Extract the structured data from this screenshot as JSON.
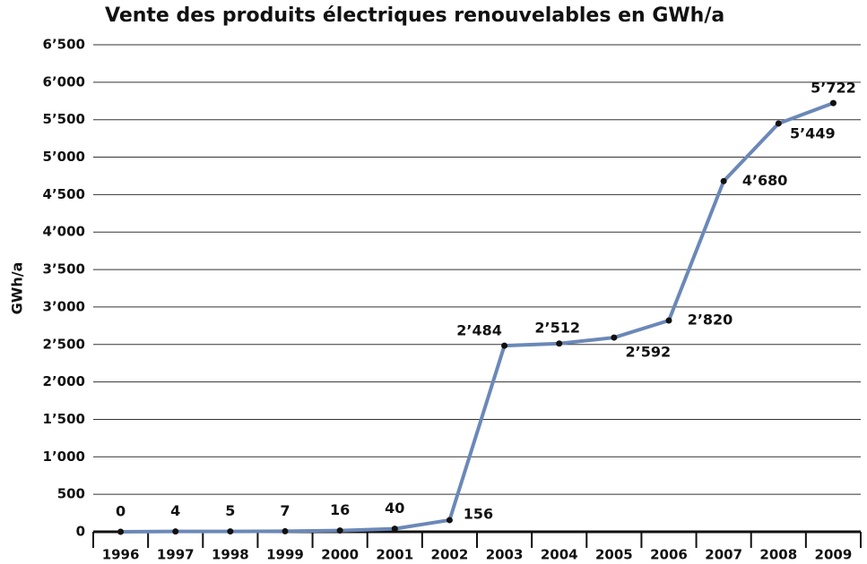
{
  "chart_data": {
    "type": "line",
    "title": "Vente des produits électriques renouvelables en GWh/a",
    "y_label": "GWh/a",
    "categories": [
      "1996",
      "1997",
      "1998",
      "1999",
      "2000",
      "2001",
      "2002",
      "2003",
      "2004",
      "2005",
      "2006",
      "2007",
      "2008",
      "2009"
    ],
    "series": [
      {
        "name": "Vente",
        "color": "#6b88b8",
        "values": [
          0,
          4,
          5,
          7,
          16,
          40,
          156,
          2484,
          2512,
          2592,
          2820,
          4680,
          5449,
          5722
        ],
        "value_labels": [
          "0",
          "4",
          "5",
          "7",
          "16",
          "40",
          "156",
          "2’484",
          "2’512",
          "2’592",
          "2’820",
          "4’680",
          "5’449",
          "5’722"
        ]
      }
    ],
    "ylim": [
      0,
      6500
    ],
    "yticks": [
      0,
      500,
      {
        "value": 1000,
        "label": "1’000"
      },
      {
        "value": 1500,
        "label": "1’500"
      },
      {
        "value": 2000,
        "label": "2’000"
      },
      {
        "value": 2500,
        "label": "2’500"
      },
      {
        "value": 3000,
        "label": "3’000"
      },
      {
        "value": 3500,
        "label": "3’500"
      },
      {
        "value": 4000,
        "label": "4’000"
      },
      {
        "value": 4500,
        "label": "4’500"
      },
      {
        "value": 5000,
        "label": "5’000"
      },
      {
        "value": 5500,
        "label": "5’500"
      },
      {
        "value": 6000,
        "label": "6’000"
      },
      {
        "value": 6500,
        "label": "6’500"
      }
    ],
    "grid": true
  }
}
